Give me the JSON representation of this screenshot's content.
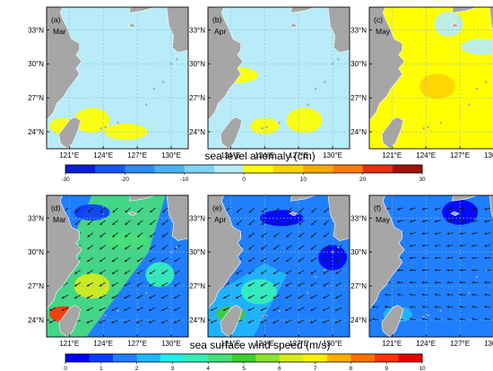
{
  "colors": {
    "land": "#a6a6a6",
    "ocean_bg": "#ffffff",
    "frame": "#000000",
    "grid": "#8fb8d8",
    "vector": "#1a1a1a"
  },
  "sla_palette": [
    "#0a1fd6",
    "#1756f0",
    "#2b8cf5",
    "#47b3f3",
    "#7dd4f2",
    "#b7ecf8",
    "#ffff00",
    "#ffd200",
    "#ffaa00",
    "#ff7a00",
    "#e8300a",
    "#a5100a"
  ],
  "wind_palette": [
    "#0000ff",
    "#0c3cff",
    "#1f7fff",
    "#1fb8ff",
    "#1ef0e8",
    "#34f0b8",
    "#47e07a",
    "#3fcf2f",
    "#8de22a",
    "#d6ec1c",
    "#fff000",
    "#ffb000",
    "#ff7000",
    "#ff3500",
    "#e80000"
  ],
  "sla_ticks": [
    "-30",
    "-20",
    "-10",
    "0",
    "10",
    "20",
    "30"
  ],
  "wind_ticks": [
    "0",
    "1",
    "2",
    "3",
    "4",
    "5",
    "6",
    "7",
    "8",
    "9",
    "10"
  ],
  "lat_labels": [
    "33°N",
    "30°N",
    "27°N",
    "24°N"
  ],
  "lon_labels": [
    "121°E",
    "124°E",
    "127°E",
    "130°E"
  ],
  "top_colorbar_title": "sea level anomaly (cm)",
  "bottom_colorbar_title": "sea surface wind speed (m/s)",
  "chart_data": [
    {
      "type": "heatmap",
      "panel": "(a)",
      "month": "Mar",
      "variable": "sea level anomaly",
      "units": "cm",
      "colorbar_range": [
        -30,
        30
      ],
      "ocean_level": -5,
      "lat_ticks": [
        33,
        30,
        27,
        24
      ],
      "lon_ticks": [
        121,
        124,
        127,
        130
      ],
      "features": [
        {
          "lon": 120.5,
          "lat": 24.5,
          "value": 3
        },
        {
          "lon": 123,
          "lat": 25,
          "value": 3
        },
        {
          "lon": 126,
          "lat": 24,
          "value": 2
        }
      ]
    },
    {
      "type": "heatmap",
      "panel": "(b)",
      "month": "Apr",
      "variable": "sea level anomaly",
      "units": "cm",
      "colorbar_range": [
        -30,
        30
      ],
      "ocean_level": -4,
      "lat_ticks": [
        33,
        30,
        27,
        24
      ],
      "lon_ticks": [
        121,
        124,
        127,
        130
      ],
      "features": [
        {
          "lon": 124,
          "lat": 24.5,
          "value": 3
        },
        {
          "lon": 127.5,
          "lat": 25,
          "value": 3
        },
        {
          "lon": 121.5,
          "lat": 29,
          "value": 2
        }
      ]
    },
    {
      "type": "heatmap",
      "panel": "(c)",
      "month": "May",
      "variable": "sea level anomaly",
      "units": "cm",
      "colorbar_range": [
        -30,
        30
      ],
      "ocean_level": 2,
      "lat_ticks": [
        33,
        30,
        27,
        24
      ],
      "lon_ticks": [
        121,
        124,
        127,
        130
      ],
      "features": [
        {
          "lon": 121,
          "lat": 34,
          "value": 3
        },
        {
          "lon": 125,
          "lat": 28,
          "value": 5
        },
        {
          "lon": 129,
          "lat": 31.5,
          "value": -2
        },
        {
          "lon": 126,
          "lat": 33.5,
          "value": -2
        }
      ]
    },
    {
      "type": "heatmap",
      "panel": "(d)",
      "month": "Mar",
      "variable": "sea surface wind speed",
      "units": "m/s",
      "colorbar_range": [
        0,
        10
      ],
      "wind_direction": "from northeast",
      "lat_ticks": [
        33,
        30,
        27,
        24
      ],
      "lon_ticks": [
        121,
        124,
        127,
        130
      ],
      "features": [
        {
          "lon": 120.5,
          "lat": 24.5,
          "value": 9
        },
        {
          "lon": 123,
          "lat": 27,
          "value": 6
        },
        {
          "lon": 126,
          "lat": 31,
          "value": 4
        },
        {
          "lon": 129,
          "lat": 28,
          "value": 3.5
        },
        {
          "lon": 123,
          "lat": 33.5,
          "value": 1
        }
      ]
    },
    {
      "type": "heatmap",
      "panel": "(e)",
      "month": "Apr",
      "variable": "sea surface wind speed",
      "units": "m/s",
      "colorbar_range": [
        0,
        10
      ],
      "wind_direction": "from northeast",
      "lat_ticks": [
        33,
        30,
        27,
        24
      ],
      "lon_ticks": [
        121,
        124,
        127,
        130
      ],
      "features": [
        {
          "lon": 121,
          "lat": 24.5,
          "value": 5
        },
        {
          "lon": 123.5,
          "lat": 26.5,
          "value": 3.5
        },
        {
          "lon": 125.5,
          "lat": 33,
          "value": 0.5
        },
        {
          "lon": 130,
          "lat": 29.5,
          "value": 0.5
        }
      ]
    },
    {
      "type": "heatmap",
      "panel": "(f)",
      "month": "May",
      "variable": "sea surface wind speed",
      "units": "m/s",
      "colorbar_range": [
        0,
        10
      ],
      "wind_direction": "from east",
      "lat_ticks": [
        33,
        30,
        27,
        24
      ],
      "lon_ticks": [
        121,
        124,
        127,
        130
      ],
      "features": [
        {
          "lon": 121.5,
          "lat": 24.5,
          "value": 2.5
        },
        {
          "lon": 127,
          "lat": 33.5,
          "value": 0.5
        },
        {
          "lon": 125,
          "lat": 28,
          "value": 1.5
        }
      ]
    }
  ]
}
